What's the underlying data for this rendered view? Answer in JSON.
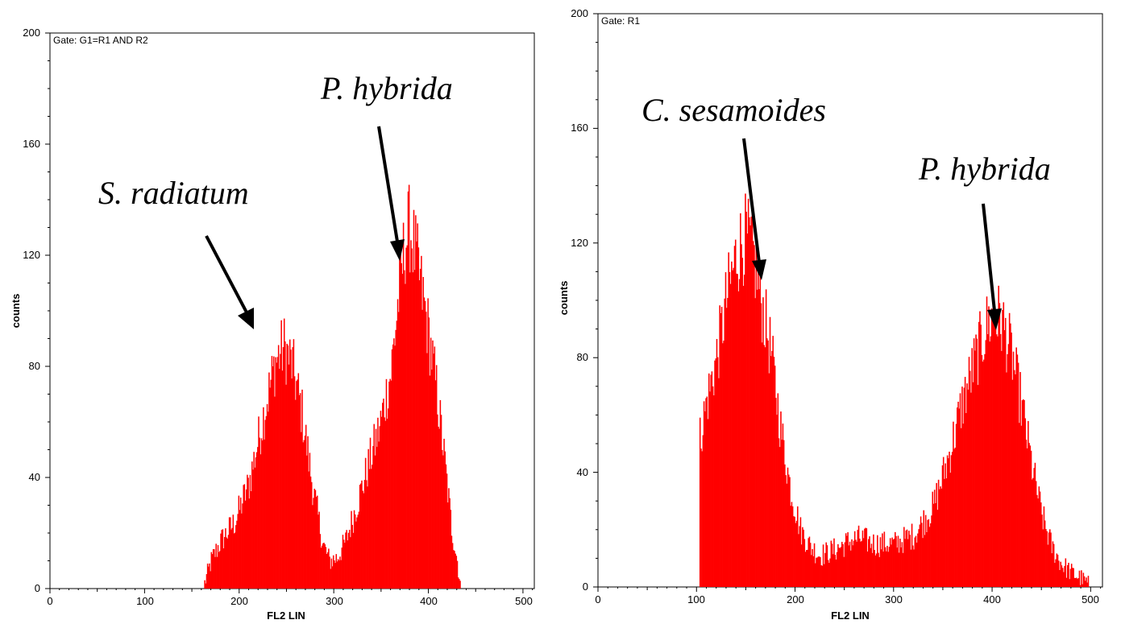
{
  "chart_data": [
    {
      "type": "histogram",
      "gate": "Gate: G1=R1 AND R2",
      "xlabel": "FL2 LIN",
      "ylabel": "counts",
      "xlim": [
        0,
        512
      ],
      "ylim": [
        0,
        200
      ],
      "x_ticks": [
        "0",
        "100",
        "200",
        "300",
        "400",
        "500"
      ],
      "y_ticks": [
        "0",
        "40",
        "80",
        "120",
        "160",
        "200"
      ],
      "bar_color": "#ff0000",
      "x_start": 163,
      "x_end": 433,
      "profile": [
        [
          163,
          2
        ],
        [
          170,
          10
        ],
        [
          180,
          17
        ],
        [
          195,
          24
        ],
        [
          210,
          38
        ],
        [
          225,
          62
        ],
        [
          238,
          82
        ],
        [
          247,
          87
        ],
        [
          256,
          80
        ],
        [
          266,
          63
        ],
        [
          277,
          37
        ],
        [
          288,
          16
        ],
        [
          295,
          10
        ],
        [
          303,
          11
        ],
        [
          312,
          17
        ],
        [
          322,
          28
        ],
        [
          335,
          43
        ],
        [
          348,
          58
        ],
        [
          360,
          78
        ],
        [
          368,
          105
        ],
        [
          375,
          125
        ],
        [
          380,
          130
        ],
        [
          387,
          118
        ],
        [
          398,
          96
        ],
        [
          408,
          72
        ],
        [
          417,
          45
        ],
        [
          424,
          22
        ],
        [
          430,
          10
        ],
        [
          433,
          2
        ]
      ],
      "annotations": [
        {
          "text": "S. radiatum",
          "target_x": 215,
          "target_y": 93
        },
        {
          "text": "P. hybrida",
          "target_x": 370,
          "target_y": 118
        }
      ]
    },
    {
      "type": "histogram",
      "gate": "Gate: R1",
      "xlabel": "FL2 LIN",
      "ylabel": "counts",
      "xlim": [
        0,
        512
      ],
      "ylim": [
        0,
        200
      ],
      "x_ticks": [
        "0",
        "100",
        "200",
        "300",
        "400",
        "500"
      ],
      "y_ticks": [
        "0",
        "40",
        "80",
        "120",
        "160",
        "200"
      ],
      "bar_color": "#ff0000",
      "x_start": 103,
      "x_end": 497,
      "profile": [
        [
          103,
          52
        ],
        [
          110,
          65
        ],
        [
          120,
          80
        ],
        [
          130,
          100
        ],
        [
          140,
          116
        ],
        [
          148,
          122
        ],
        [
          156,
          118
        ],
        [
          165,
          100
        ],
        [
          175,
          82
        ],
        [
          185,
          55
        ],
        [
          195,
          34
        ],
        [
          205,
          20
        ],
        [
          215,
          14
        ],
        [
          225,
          11
        ],
        [
          240,
          13
        ],
        [
          255,
          16
        ],
        [
          265,
          17
        ],
        [
          280,
          15
        ],
        [
          300,
          15
        ],
        [
          320,
          18
        ],
        [
          340,
          28
        ],
        [
          355,
          45
        ],
        [
          370,
          65
        ],
        [
          385,
          82
        ],
        [
          395,
          92
        ],
        [
          402,
          95
        ],
        [
          410,
          92
        ],
        [
          420,
          80
        ],
        [
          430,
          62
        ],
        [
          440,
          42
        ],
        [
          450,
          25
        ],
        [
          460,
          14
        ],
        [
          470,
          8
        ],
        [
          480,
          5
        ],
        [
          490,
          3
        ],
        [
          497,
          1
        ]
      ],
      "annotations": [
        {
          "text": "C. sesamoides",
          "target_x": 163,
          "target_y": 107
        },
        {
          "text": "P. hybrida",
          "target_x": 398,
          "target_y": 90
        }
      ]
    }
  ]
}
